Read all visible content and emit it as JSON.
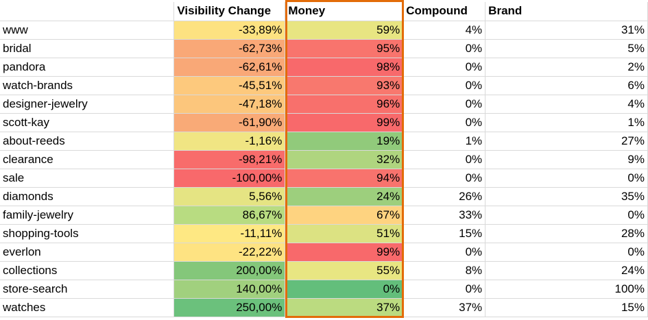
{
  "headers": [
    "",
    "Visibility Change",
    "Money",
    "Compound",
    "Brand"
  ],
  "rows": [
    {
      "name": "www",
      "visibility": "-33,89%",
      "money": "59%",
      "compound": "4%",
      "brand": "31%",
      "vis_color": "#fde281",
      "money_color": "#e8e582"
    },
    {
      "name": "bridal",
      "visibility": "-62,73%",
      "money": "95%",
      "compound": "0%",
      "brand": "5%",
      "vis_color": "#f9a877",
      "money_color": "#f8746d"
    },
    {
      "name": "pandora",
      "visibility": "-62,61%",
      "money": "98%",
      "compound": "0%",
      "brand": "2%",
      "vis_color": "#f9a877",
      "money_color": "#f8696b"
    },
    {
      "name": "watch-brands",
      "visibility": "-45,51%",
      "money": "93%",
      "compound": "0%",
      "brand": "6%",
      "vis_color": "#fdc97d",
      "money_color": "#f8786e"
    },
    {
      "name": "designer-jewelry",
      "visibility": "-47,18%",
      "money": "96%",
      "compound": "0%",
      "brand": "4%",
      "vis_color": "#fcc67c",
      "money_color": "#f8706c"
    },
    {
      "name": "scott-kay",
      "visibility": "-61,90%",
      "money": "99%",
      "compound": "0%",
      "brand": "1%",
      "vis_color": "#f9aa77",
      "money_color": "#f8696b"
    },
    {
      "name": "about-reeds",
      "visibility": "-1,16%",
      "money": "19%",
      "compound": "1%",
      "brand": "27%",
      "vis_color": "#f0e583",
      "money_color": "#91ca7b"
    },
    {
      "name": "clearance",
      "visibility": "-98,21%",
      "money": "32%",
      "compound": "0%",
      "brand": "9%",
      "vis_color": "#f86c6b",
      "money_color": "#afd57f"
    },
    {
      "name": "sale",
      "visibility": "-100,00%",
      "money": "94%",
      "compound": "0%",
      "brand": "0%",
      "vis_color": "#f8696b",
      "money_color": "#f8736d"
    },
    {
      "name": "diamonds",
      "visibility": "5,56%",
      "money": "24%",
      "compound": "26%",
      "brand": "35%",
      "vis_color": "#e5e483",
      "money_color": "#9dcf7d"
    },
    {
      "name": "family-jewelry",
      "visibility": "86,67%",
      "money": "67%",
      "compound": "33%",
      "brand": "0%",
      "vis_color": "#b8dc81",
      "money_color": "#fed380"
    },
    {
      "name": "shopping-tools",
      "visibility": "-11,11%",
      "money": "51%",
      "compound": "15%",
      "brand": "28%",
      "vis_color": "#fee883",
      "money_color": "#dce282"
    },
    {
      "name": "everlon",
      "visibility": "-22,22%",
      "money": "99%",
      "compound": "0%",
      "brand": "0%",
      "vis_color": "#fee382",
      "money_color": "#f8696b"
    },
    {
      "name": "collections",
      "visibility": "200,00%",
      "money": "55%",
      "compound": "8%",
      "brand": "24%",
      "vis_color": "#84c77a",
      "money_color": "#e8e682"
    },
    {
      "name": "store-search",
      "visibility": "140,00%",
      "money": "0%",
      "compound": "0%",
      "brand": "100%",
      "vis_color": "#a1d07e",
      "money_color": "#63be7b"
    },
    {
      "name": "watches",
      "visibility": "250,00%",
      "money": "37%",
      "compound": "37%",
      "brand": "15%",
      "vis_color": "#6bc17c",
      "money_color": "#bbdb80"
    }
  ],
  "highlight_color": "#e36c09"
}
